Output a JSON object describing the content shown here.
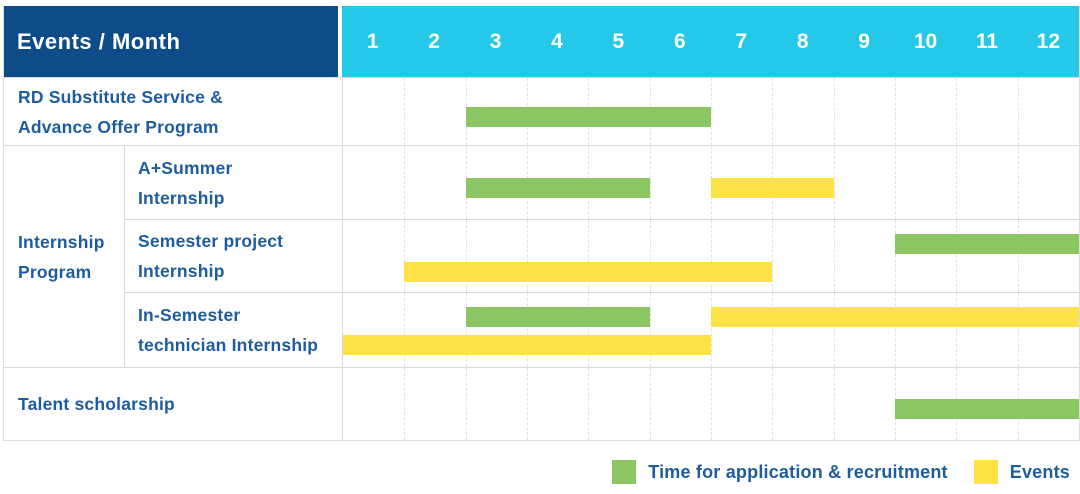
{
  "chart_data": {
    "type": "bar",
    "variant": "gantt-schedule",
    "corner_label": "Events / Month",
    "months": [
      "1",
      "2",
      "3",
      "4",
      "5",
      "6",
      "7",
      "8",
      "9",
      "10",
      "11",
      "12"
    ],
    "x_axis": {
      "unit": "month",
      "range": [
        1,
        12
      ]
    },
    "group": {
      "label": "Internship Program",
      "lines": [
        "Internship",
        "Program"
      ],
      "spans_rows": [
        1,
        3
      ]
    },
    "rows": [
      {
        "label": "RD Substitute Service & Advance Offer Program",
        "lines": [
          "RD Substitute Service &",
          "Advance Offer Program"
        ],
        "group": "",
        "bars": [
          {
            "kind": "application",
            "start": 3,
            "end": 6,
            "lane": "single"
          }
        ]
      },
      {
        "label": "A+Summer Internship",
        "lines": [
          "A+Summer",
          "Internship"
        ],
        "group": "Internship Program",
        "bars": [
          {
            "kind": "application",
            "start": 3,
            "end": 5,
            "lane": "single"
          },
          {
            "kind": "event",
            "start": 7,
            "end": 8,
            "lane": "single"
          }
        ]
      },
      {
        "label": "Semester project Internship",
        "lines": [
          "Semester project",
          "Internship"
        ],
        "group": "Internship Program",
        "bars": [
          {
            "kind": "application",
            "start": 10,
            "end": 12,
            "lane": "top"
          },
          {
            "kind": "event",
            "start": 2,
            "end": 7,
            "lane": "bottom"
          }
        ]
      },
      {
        "label": "In-Semester technician Internship",
        "lines": [
          "In-Semester",
          "technician Internship"
        ],
        "group": "Internship Program",
        "bars": [
          {
            "kind": "application",
            "start": 3,
            "end": 5,
            "lane": "top"
          },
          {
            "kind": "event",
            "start": 7,
            "end": 12,
            "lane": "top"
          },
          {
            "kind": "event",
            "start": 1,
            "end": 6,
            "lane": "bottom"
          }
        ]
      },
      {
        "label": "Talent scholarship",
        "lines": [
          "Talent scholarship"
        ],
        "group": "",
        "bars": [
          {
            "kind": "application",
            "start": 10,
            "end": 12,
            "lane": "single"
          }
        ]
      }
    ],
    "legend": [
      {
        "kind": "application",
        "label": "Time for application & recruitment"
      },
      {
        "kind": "event",
        "label": "Events"
      }
    ],
    "colors": {
      "application": "#8CC663",
      "event": "#FFE346",
      "header_bg": "#0E4B89",
      "month_header_bg": "#25C8E8",
      "label_text": "#1D5C9E"
    }
  }
}
